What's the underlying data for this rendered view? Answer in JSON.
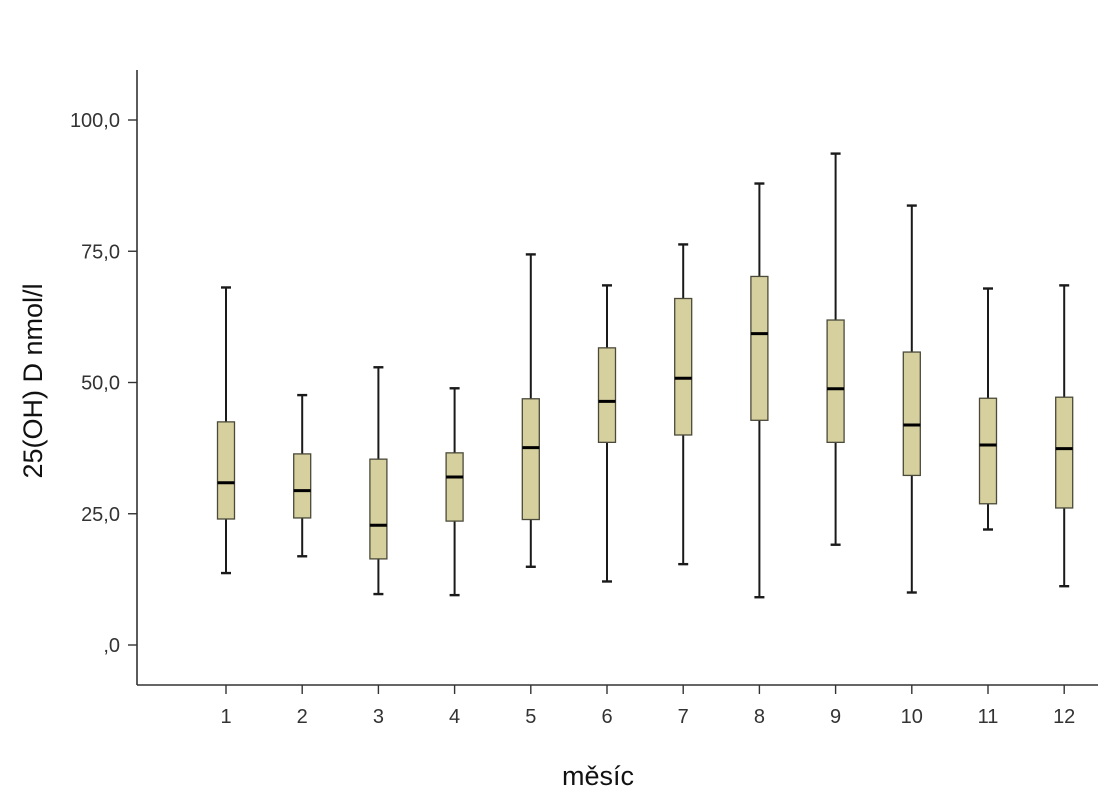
{
  "chart_data": {
    "type": "box",
    "xlabel": "měsíc",
    "ylabel": "25(OH) D nmol/l",
    "ylim": [
      -7.5,
      108
    ],
    "y_ticks": [
      {
        "value": 0,
        "label": ",0"
      },
      {
        "value": 25,
        "label": "25,0"
      },
      {
        "value": 50,
        "label": "50,0"
      },
      {
        "value": 75,
        "label": "75,0"
      },
      {
        "value": 100,
        "label": "100,0"
      }
    ],
    "categories": [
      "1",
      "2",
      "3",
      "4",
      "5",
      "6",
      "7",
      "8",
      "9",
      "10",
      "11",
      "12"
    ],
    "boxes": [
      {
        "min": 13.7,
        "q1": 24.0,
        "median": 30.9,
        "q3": 42.5,
        "max": 68.1
      },
      {
        "min": 16.9,
        "q1": 24.2,
        "median": 29.4,
        "q3": 36.4,
        "max": 47.6
      },
      {
        "min": 9.7,
        "q1": 16.4,
        "median": 22.8,
        "q3": 35.4,
        "max": 52.9
      },
      {
        "min": 9.5,
        "q1": 23.6,
        "median": 32.0,
        "q3": 36.6,
        "max": 48.9
      },
      {
        "min": 14.9,
        "q1": 23.9,
        "median": 37.6,
        "q3": 46.9,
        "max": 74.4
      },
      {
        "min": 12.1,
        "q1": 38.6,
        "median": 46.4,
        "q3": 56.6,
        "max": 68.5
      },
      {
        "min": 15.4,
        "q1": 40.0,
        "median": 50.8,
        "q3": 66.0,
        "max": 76.3
      },
      {
        "min": 9.1,
        "q1": 42.8,
        "median": 59.3,
        "q3": 70.2,
        "max": 87.9
      },
      {
        "min": 19.1,
        "q1": 38.6,
        "median": 48.8,
        "q3": 61.9,
        "max": 93.6
      },
      {
        "min": 10.0,
        "q1": 32.3,
        "median": 41.9,
        "q3": 55.8,
        "max": 83.7
      },
      {
        "min": 22.0,
        "q1": 26.9,
        "median": 38.1,
        "q3": 47.0,
        "max": 67.9
      },
      {
        "min": 11.2,
        "q1": 26.1,
        "median": 37.4,
        "q3": 47.2,
        "max": 68.5
      }
    ],
    "colors": {
      "box_fill": "#d6cf9e",
      "box_stroke": "#4a4a3a",
      "median": "#000000",
      "whisker": "#1a1a1a",
      "axis": "#333333"
    },
    "grid": false,
    "legend": "none"
  }
}
